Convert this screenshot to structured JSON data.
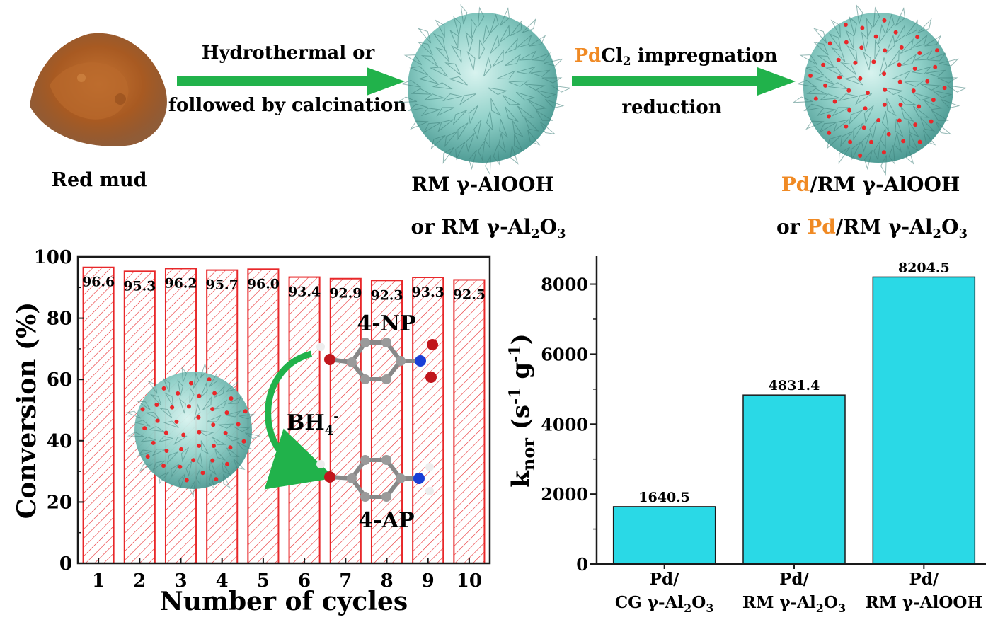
{
  "scheme": {
    "start_label": "Red mud",
    "step1_line1": "Hydrothermal or",
    "step1_line2": "followed by calcination",
    "mid_label_line1": "RM γ-AlOOH",
    "mid_label_line2_prefix": "or RM γ-Al",
    "mid_label_line2_sub1": "2",
    "mid_label_line2_mid": "O",
    "mid_label_line2_sub2": "3",
    "step2_pd": "Pd",
    "step2_rest": "Cl",
    "step2_sub": "2",
    "step2_tail": " impregnation",
    "step2_line2": "reduction",
    "end_pd": "Pd",
    "end_line1_rest": "/RM γ-AlOOH",
    "end_line2_prefix": "or ",
    "end_line2_pd": "Pd",
    "end_line2_rest": "/RM γ-Al",
    "end_line2_sub1": "2",
    "end_line2_mid": "O",
    "end_line2_sub2": "3",
    "colors": {
      "arrow": "#21b24b",
      "pd_orange": "#f08a24",
      "sphere": "#8fd0c8",
      "dots": "#e8282a",
      "powder": "#a85a22"
    }
  },
  "inset": {
    "reactant": "4-NP",
    "product": "4-AP",
    "reagent": "BH",
    "reagent_sub": "4",
    "reagent_sup": "-"
  },
  "chart_data": [
    {
      "type": "bar",
      "xlabel": "Number of cycles",
      "ylabel": "Conversion (%)",
      "categories": [
        "1",
        "2",
        "3",
        "4",
        "5",
        "6",
        "7",
        "8",
        "9",
        "10"
      ],
      "values": [
        96.6,
        95.3,
        96.2,
        95.7,
        96.0,
        93.4,
        92.9,
        92.3,
        93.3,
        92.5
      ],
      "data_labels": [
        "96.6",
        "95.3",
        "96.2",
        "95.7",
        "96.0",
        "93.4",
        "92.9",
        "92.3",
        "93.3",
        "92.5"
      ],
      "ylim": [
        0,
        100
      ],
      "yticks": [
        0,
        20,
        40,
        60,
        80,
        100
      ],
      "bar_style": "red hatched outline",
      "bar_color": "#e8282a"
    },
    {
      "type": "bar",
      "ylabel": "knor (s-1 g-1)",
      "ylabel_main": "k",
      "ylabel_sub": "nor",
      "ylabel_units_open": " (s",
      "ylabel_sup1": "-1",
      "ylabel_units_mid": " g",
      "ylabel_sup2": "-1",
      "ylabel_units_close": ")",
      "categories": [
        {
          "line1": "Pd/",
          "line2_prefix": "CG γ-Al",
          "sub1": "2",
          "mid": "O",
          "sub2": "3"
        },
        {
          "line1": "Pd/",
          "line2_prefix": "RM γ-Al",
          "sub1": "2",
          "mid": "O",
          "sub2": "3"
        },
        {
          "line1": "Pd/",
          "line2_prefix": "RM γ-AlOOH",
          "sub1": "",
          "mid": "",
          "sub2": ""
        }
      ],
      "values": [
        1640.5,
        4831.4,
        8204.5
      ],
      "data_labels": [
        "1640.5",
        "4831.4",
        "8204.5"
      ],
      "ylim": [
        0,
        8800
      ],
      "yticks": [
        0,
        2000,
        4000,
        6000,
        8000
      ],
      "bar_color": "#2ad9e6"
    }
  ]
}
